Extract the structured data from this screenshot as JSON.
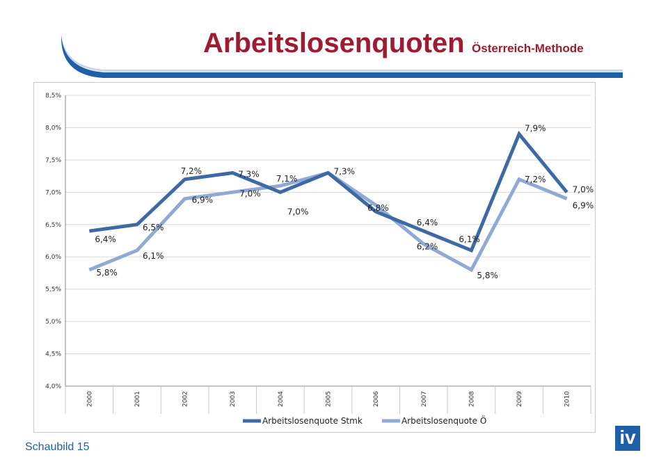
{
  "header": {
    "title": "Arbeitslosenquoten",
    "subtitle": "Österreich-Methode"
  },
  "footer": {
    "label": "Schaubild 15",
    "logo_text": "iv"
  },
  "colors": {
    "brand_red": "#9e1b32",
    "brand_blue": "#1f5fa8",
    "series_stmk": "#3d6aa5",
    "series_oe": "#8faad4"
  },
  "chart_data": {
    "type": "line",
    "x": [
      "2000",
      "2001",
      "2002",
      "2003",
      "2004",
      "2005",
      "2006",
      "2007",
      "2008",
      "2009",
      "2010"
    ],
    "ylim": [
      4.0,
      8.5
    ],
    "yticks": [
      "4,0%",
      "4,5%",
      "5,0%",
      "5,5%",
      "6,0%",
      "6,5%",
      "7,0%",
      "7,5%",
      "8,0%",
      "8,5%"
    ],
    "grid": true,
    "legend_position": "bottom",
    "series": [
      {
        "name": "Arbeitslosenquote Stmk",
        "values": [
          6.4,
          6.5,
          7.2,
          7.3,
          7.0,
          7.3,
          6.7,
          6.4,
          6.1,
          7.9,
          7.0
        ],
        "labels": [
          "6,4%",
          "6,5%",
          "7,2%",
          "7,3%",
          "7,0%",
          "7,3%",
          "",
          "6,4%",
          "6,1%",
          "7,9%",
          "7,0%"
        ]
      },
      {
        "name": "Arbeitslosenquote Ö",
        "values": [
          5.8,
          6.1,
          6.9,
          7.0,
          7.1,
          7.3,
          6.8,
          6.2,
          5.8,
          7.2,
          6.9
        ],
        "labels": [
          "5,8%",
          "6,1%",
          "6,9%",
          "7,0%",
          "7,1%",
          "",
          "6,8%",
          "6,2%",
          "5,8%",
          "7,2%",
          "6,9%"
        ]
      }
    ]
  }
}
